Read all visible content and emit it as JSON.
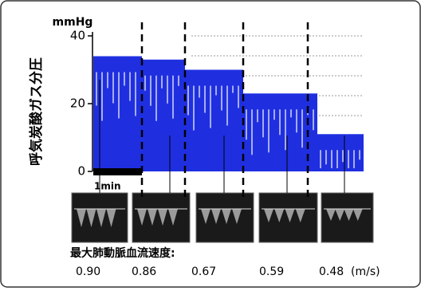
{
  "figure": {
    "y_axis_label": "呼気炭酸ガス分圧",
    "y_unit": "mmHg",
    "ylim": [
      0,
      40
    ],
    "yticks": [
      0,
      20,
      40
    ],
    "trace_color": "#1f2fe0",
    "segment_levels": [
      34,
      33,
      30,
      23,
      11
    ],
    "scale_bar_label": "1min",
    "velocity_title": "最大肺動脈血流速度:",
    "velocities": [
      "0.90",
      "0.86",
      "0.67",
      "0.59",
      "0.48"
    ],
    "velocity_unit": "(m/s)"
  }
}
